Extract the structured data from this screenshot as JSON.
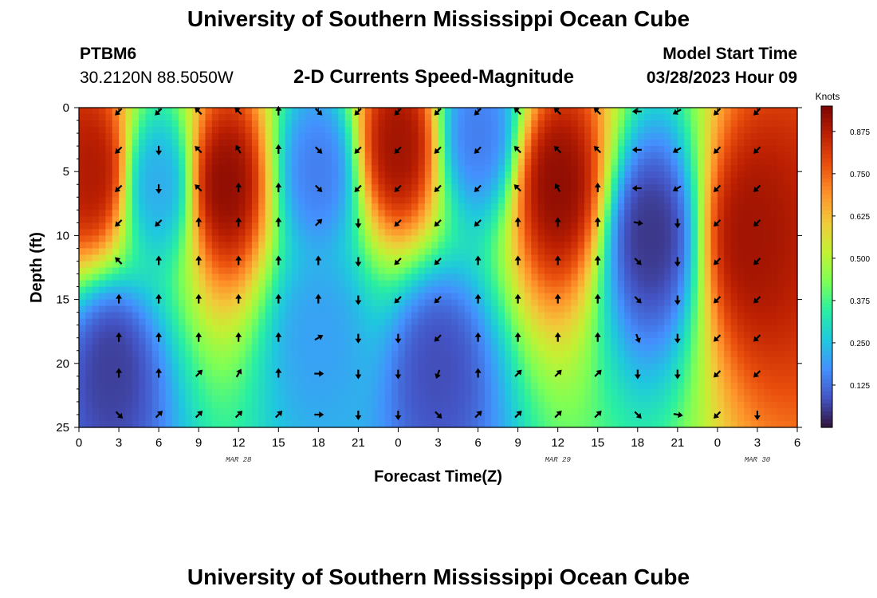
{
  "header": {
    "title": "University of Southern Mississippi Ocean Cube",
    "station_id": "PTBM6",
    "coordinates": "30.2120N  88.5050W",
    "subtitle": "2-D Currents Speed-Magnitude",
    "model_start_label": "Model Start Time",
    "model_start_value": "03/28/2023 Hour 09"
  },
  "footer": {
    "title": "University of Southern Mississippi Ocean Cube"
  },
  "chart_data": {
    "type": "heatmap",
    "title": "2-D Currents Speed-Magnitude",
    "xlabel": "Forecast Time(Z)",
    "ylabel": "Depth (ft)",
    "x_ticks": [
      "0",
      "3",
      "6",
      "9",
      "12",
      "15",
      "18",
      "21",
      "0",
      "3",
      "6",
      "9",
      "12",
      "15",
      "18",
      "21",
      "0",
      "3",
      "6"
    ],
    "x_range_hours": [
      0,
      54
    ],
    "date_labels": [
      {
        "label": "MAR 28",
        "hour": 12
      },
      {
        "label": "MAR 29",
        "hour": 36
      },
      {
        "label": "MAR 30",
        "hour": 51
      }
    ],
    "y_ticks": [
      "0",
      "5",
      "10",
      "15",
      "20",
      "25"
    ],
    "y_range": [
      0,
      25
    ],
    "colorbar": {
      "label": "Knots",
      "range": [
        0,
        0.95
      ],
      "ticks": [
        "0.875",
        "0.750",
        "0.625",
        "0.500",
        "0.375",
        "0.250",
        "0.125"
      ],
      "tick_values": [
        0.875,
        0.75,
        0.625,
        0.5,
        0.375,
        0.25,
        0.125
      ],
      "colormap": [
        "#30123b",
        "#4454c4",
        "#4490fe",
        "#1fc8de",
        "#29efa2",
        "#7eff55",
        "#c3f133",
        "#f1ca3a",
        "#fe922a",
        "#ea4f0d",
        "#be2102",
        "#7a0403"
      ]
    },
    "speed_features_knots": [
      {
        "hour": 1,
        "depth": 5,
        "speed": 0.88
      },
      {
        "hour": 2.5,
        "depth": 20.5,
        "speed": 0.06
      },
      {
        "hour": 6,
        "depth": 6,
        "speed": 0.22
      },
      {
        "hour": 11,
        "depth": 6,
        "speed": 0.92
      },
      {
        "hour": 18,
        "depth": 5,
        "speed": 0.15
      },
      {
        "hour": 18,
        "depth": 18,
        "speed": 0.2
      },
      {
        "hour": 24,
        "depth": 3,
        "speed": 0.9
      },
      {
        "hour": 27,
        "depth": 20.5,
        "speed": 0.08
      },
      {
        "hour": 30,
        "depth": 2,
        "speed": 0.15
      },
      {
        "hour": 36,
        "depth": 6,
        "speed": 0.92
      },
      {
        "hour": 43,
        "depth": 10,
        "speed": 0.05
      },
      {
        "hour": 50.5,
        "depth": 10,
        "speed": 0.9
      }
    ],
    "arrow_directions_deg": [
      {
        "hour": 3,
        "dirs": [
          225,
          225,
          225,
          225,
          315,
          0,
          0,
          0,
          135
        ]
      },
      {
        "hour": 6,
        "dirs": [
          225,
          180,
          180,
          225,
          0,
          0,
          0,
          0,
          45
        ]
      },
      {
        "hour": 9,
        "dirs": [
          315,
          315,
          315,
          0,
          0,
          0,
          0,
          45,
          45
        ]
      },
      {
        "hour": 12,
        "dirs": [
          315,
          330,
          0,
          0,
          0,
          0,
          0,
          30,
          45
        ]
      },
      {
        "hour": 15,
        "dirs": [
          0,
          0,
          0,
          0,
          0,
          0,
          0,
          0,
          45
        ]
      },
      {
        "hour": 18,
        "dirs": [
          135,
          135,
          135,
          45,
          0,
          0,
          60,
          90,
          90
        ]
      },
      {
        "hour": 21,
        "dirs": [
          225,
          225,
          225,
          180,
          180,
          180,
          180,
          180,
          180
        ]
      },
      {
        "hour": 24,
        "dirs": [
          225,
          225,
          225,
          225,
          225,
          225,
          180,
          180,
          180
        ]
      },
      {
        "hour": 27,
        "dirs": [
          225,
          225,
          225,
          225,
          225,
          225,
          225,
          200,
          135
        ]
      },
      {
        "hour": 30,
        "dirs": [
          225,
          225,
          225,
          225,
          0,
          0,
          0,
          0,
          45
        ]
      },
      {
        "hour": 33,
        "dirs": [
          315,
          315,
          315,
          0,
          0,
          0,
          0,
          45,
          45
        ]
      },
      {
        "hour": 36,
        "dirs": [
          315,
          315,
          330,
          0,
          0,
          0,
          0,
          45,
          45
        ]
      },
      {
        "hour": 39,
        "dirs": [
          315,
          315,
          0,
          0,
          0,
          0,
          0,
          45,
          45
        ]
      },
      {
        "hour": 42,
        "dirs": [
          270,
          270,
          270,
          100,
          135,
          135,
          160,
          180,
          135
        ]
      },
      {
        "hour": 45,
        "dirs": [
          240,
          240,
          240,
          180,
          180,
          180,
          180,
          180,
          100
        ]
      },
      {
        "hour": 48,
        "dirs": [
          225,
          225,
          225,
          225,
          225,
          225,
          225,
          225,
          225
        ]
      },
      {
        "hour": 51,
        "dirs": [
          225,
          225,
          225,
          225,
          225,
          225,
          225,
          225,
          180
        ]
      }
    ],
    "arrow_depths": [
      0.3,
      3.3,
      6.3,
      9,
      12,
      15,
      18,
      20.8,
      24
    ]
  }
}
